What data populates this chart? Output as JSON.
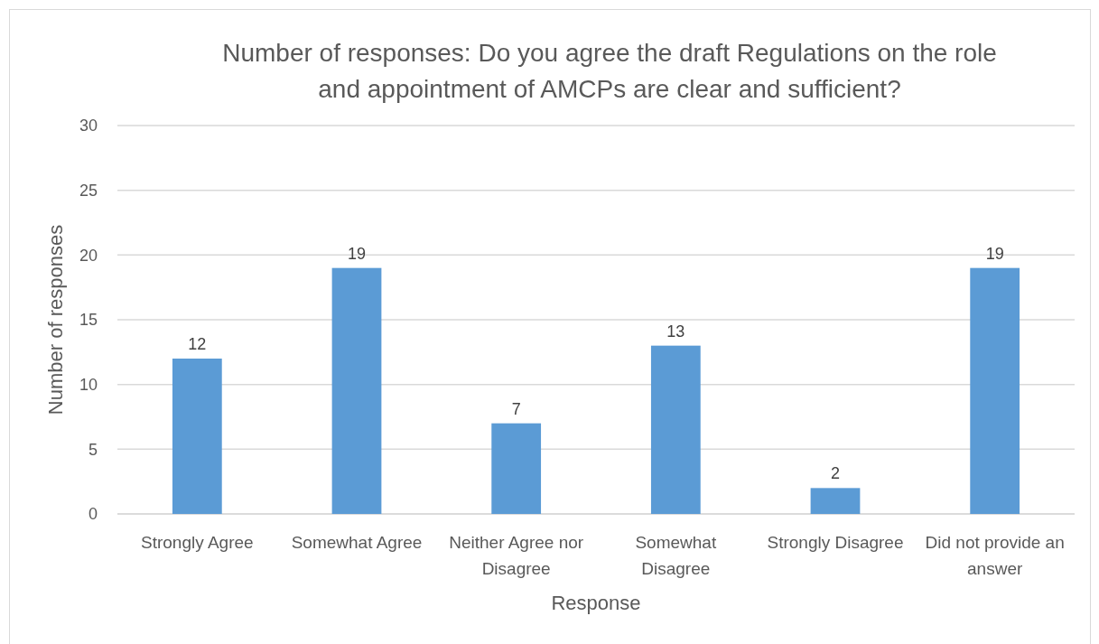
{
  "chart_data": {
    "type": "bar",
    "title": "Number of responses: Do you agree the draft Regulations on the role and appointment of AMCPs are clear and sufficient?",
    "xlabel": "Response",
    "ylabel": "Number of responses",
    "categories": [
      "Strongly Agree",
      "Somewhat Agree",
      "Neither Agree nor Disagree",
      "Somewhat Disagree",
      "Strongly Disagree",
      "Did not provide an answer"
    ],
    "values": [
      12,
      19,
      7,
      13,
      2,
      19
    ],
    "color": "#5b9bd5",
    "ylim": [
      0,
      30
    ],
    "yticks": [
      0,
      5,
      10,
      15,
      20,
      25,
      30
    ],
    "grid": "y",
    "data_labels": true
  }
}
